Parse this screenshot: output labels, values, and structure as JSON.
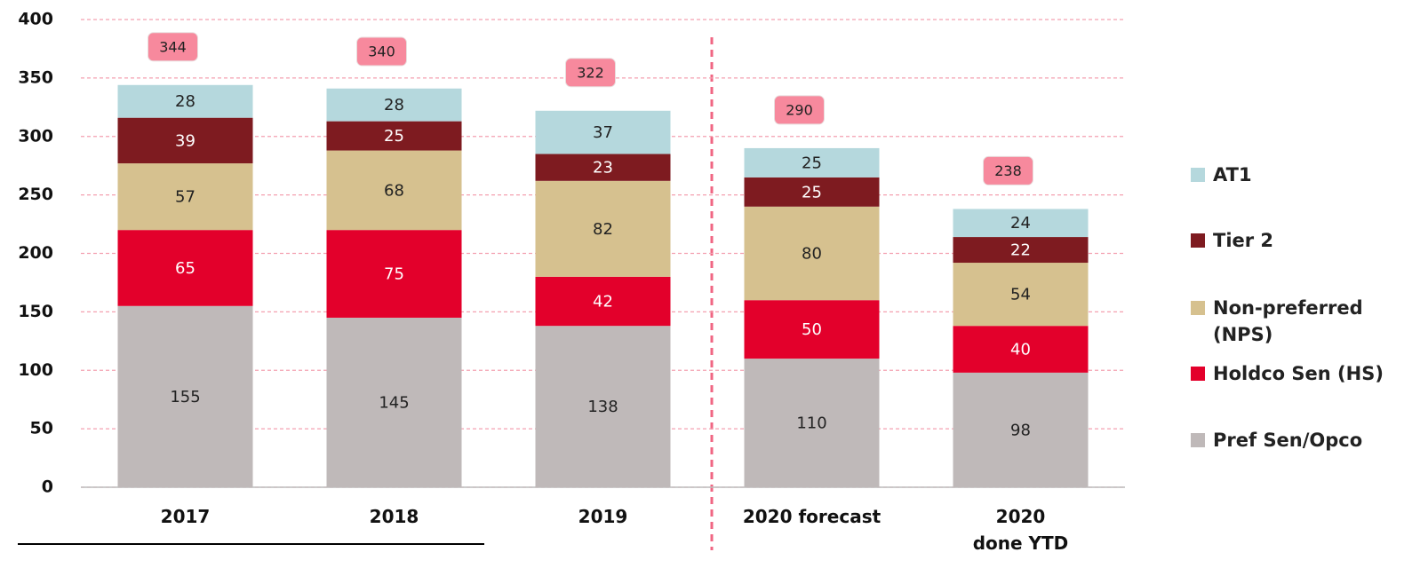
{
  "chart_data": {
    "type": "stacked_bar",
    "categories": [
      "2017",
      "2018",
      "2019",
      "2020 forecast",
      "2020\ndone YTD"
    ],
    "series": [
      {
        "name": "Pref Sen/Opco",
        "color": "#bfb9b9",
        "label_color": "#222222",
        "values": [
          155,
          145,
          138,
          110,
          98
        ]
      },
      {
        "name": "Holdco Sen (HS)",
        "color": "#e3002b",
        "label_color": "#ffffff",
        "values": [
          65,
          75,
          42,
          50,
          40
        ]
      },
      {
        "name": "Non-preferred\n(NPS)",
        "color": "#d6c18f",
        "label_color": "#222222",
        "values": [
          57,
          68,
          82,
          80,
          54
        ]
      },
      {
        "name": "Tier 2",
        "color": "#7e1b20",
        "label_color": "#ffffff",
        "values": [
          39,
          25,
          23,
          25,
          22
        ]
      },
      {
        "name": "AT1",
        "color": "#b5d8dd",
        "label_color": "#222222",
        "values": [
          28,
          28,
          37,
          25,
          24
        ]
      }
    ],
    "totals": [
      344,
      340,
      322,
      290,
      238
    ],
    "ylim": [
      0,
      400
    ],
    "yticks": [
      0,
      50,
      100,
      150,
      200,
      250,
      300,
      350,
      400
    ],
    "grid": true,
    "legend": "right"
  }
}
